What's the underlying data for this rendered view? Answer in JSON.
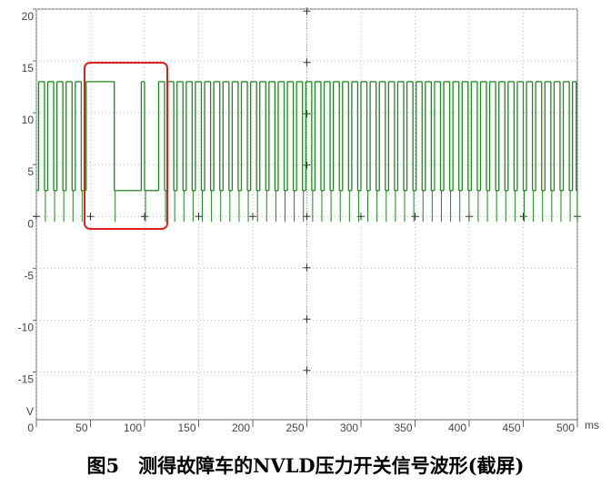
{
  "chart_data": {
    "type": "step",
    "caption": "图5　测得故障车的NVLD压力开关信号波形(截屏)",
    "x_unit": "ms",
    "y_unit": "V",
    "color": "#1a8a1a",
    "xlim": [
      0,
      500
    ],
    "ylim": [
      -19.6,
      20
    ],
    "xticks": [
      0,
      50,
      100,
      150,
      200,
      250,
      300,
      350,
      400,
      450,
      500
    ],
    "yticks": [
      20,
      15,
      10,
      5,
      0,
      -5,
      -10,
      -15
    ],
    "grid": true,
    "x": [
      0,
      2,
      7.5,
      10.5,
      16,
      19,
      24.5,
      27.5,
      33,
      36,
      41.5,
      46,
      72,
      97,
      100,
      113,
      118.5,
      121.5,
      127,
      130,
      135.5,
      138.5,
      144,
      147,
      152.5,
      155.5,
      161,
      164,
      169.5,
      172.5,
      178,
      181,
      186.5,
      189.5,
      195,
      198,
      203.5,
      206.5,
      212,
      215,
      220.5,
      223.5,
      229,
      232,
      237.5,
      240.5,
      246,
      249,
      254.5,
      257.5,
      263,
      266,
      271.5,
      274.5,
      280,
      283,
      288.5,
      291.5,
      297,
      300,
      305.5,
      308.5,
      314,
      317,
      322.5,
      325.5,
      331,
      334,
      339.5,
      342.5,
      348,
      351,
      356.5,
      359.5,
      365,
      368,
      373.5,
      376.5,
      382,
      385,
      390.5,
      393.5,
      399,
      402,
      407.5,
      410.5,
      416,
      419,
      424.5,
      427.5,
      433,
      436,
      441.5,
      444.5,
      450,
      453,
      458.5,
      461.5,
      467,
      470,
      475.5,
      478.5,
      484,
      487,
      492.5,
      495.5,
      499
    ],
    "values": [
      2.5,
      13,
      2.5,
      13,
      2.5,
      13,
      2.5,
      13,
      2.5,
      13,
      2.5,
      13,
      2.5,
      13,
      2.5,
      13,
      2.5,
      13,
      2.5,
      13,
      2.5,
      13,
      2.5,
      13,
      2.5,
      13,
      2.5,
      13,
      2.5,
      13,
      2.5,
      13,
      2.5,
      13,
      2.5,
      13,
      2.5,
      13,
      2.5,
      13,
      2.5,
      13,
      2.5,
      13,
      2.5,
      13,
      2.5,
      13,
      2.5,
      13,
      2.5,
      13,
      2.5,
      13,
      2.5,
      13,
      2.5,
      13,
      2.5,
      13,
      2.5,
      13,
      2.5,
      13,
      2.5,
      13,
      2.5,
      13,
      2.5,
      13,
      2.5,
      13,
      2.5,
      13,
      2.5,
      13,
      2.5,
      13,
      2.5,
      13,
      2.5,
      13,
      2.5,
      13,
      2.5,
      13,
      2.5,
      13,
      2.5,
      13,
      2.5,
      13,
      2.5,
      13,
      2.5,
      13,
      2.5,
      13,
      2.5,
      13,
      2.5,
      13,
      2.5,
      13,
      2.5,
      13,
      2.5
    ]
  }
}
